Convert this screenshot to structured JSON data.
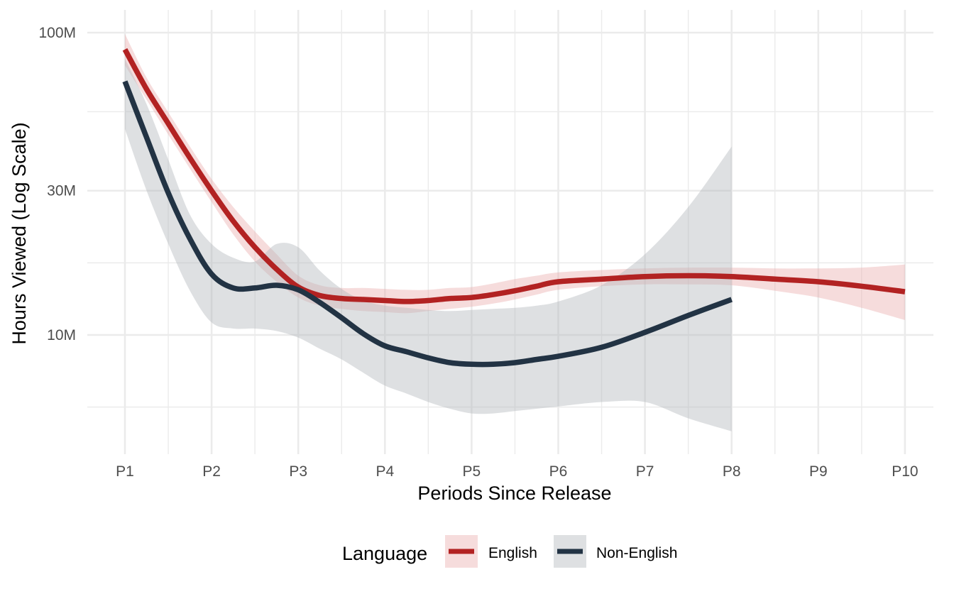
{
  "chart_data": {
    "type": "line",
    "title": "",
    "xlabel": "Periods Since Release",
    "ylabel": "Hours Viewed (Log Scale)",
    "y_scale": "log10",
    "ylim": [
      4400000,
      104000000
    ],
    "y_ticks": [
      {
        "value": 100000000,
        "label": "100M"
      },
      {
        "value": 30000000,
        "label": "30M"
      },
      {
        "value": 10000000,
        "label": "10M"
      }
    ],
    "y_minor_ticks": [
      54772256,
      17320508,
      5773503
    ],
    "categories": [
      "P1",
      "P2",
      "P3",
      "P4",
      "P5",
      "P6",
      "P7",
      "P8",
      "P9",
      "P10"
    ],
    "grid": true,
    "legend": {
      "title": "Language",
      "position": "bottom",
      "entries": [
        "English",
        "Non-English"
      ]
    },
    "series": [
      {
        "name": "English",
        "color": "#B22222",
        "band_color": "#E9A8A8",
        "x": [
          1,
          1.25,
          1.5,
          1.75,
          2,
          2.25,
          2.5,
          2.75,
          3,
          3.25,
          3.5,
          3.75,
          4,
          4.25,
          4.5,
          4.75,
          5,
          5.25,
          5.5,
          5.75,
          6,
          6.5,
          7,
          7.5,
          8,
          8.5,
          9,
          9.5,
          10
        ],
        "values": [
          88000000,
          65000000,
          50000000,
          38500000,
          30000000,
          23800000,
          19500000,
          16500000,
          14400000,
          13500000,
          13200000,
          13100000,
          13000000,
          12900000,
          13000000,
          13200000,
          13300000,
          13600000,
          14000000,
          14500000,
          15000000,
          15300000,
          15600000,
          15700000,
          15600000,
          15300000,
          15000000,
          14500000,
          13900000
        ],
        "lower": [
          78000000,
          60000000,
          46000000,
          35500000,
          27500000,
          21500000,
          17500000,
          15000000,
          13300000,
          12500000,
          12200000,
          12000000,
          11900000,
          11800000,
          12000000,
          12200000,
          12400000,
          12700000,
          13100000,
          13600000,
          14100000,
          14500000,
          14700000,
          14700000,
          14600000,
          14000000,
          13300000,
          12300000,
          11200000
        ],
        "upper": [
          99000000,
          71000000,
          54500000,
          42000000,
          32800000,
          26500000,
          22000000,
          18500000,
          15700000,
          14600000,
          14300000,
          14300000,
          14200000,
          14100000,
          14100000,
          14300000,
          14400000,
          14800000,
          15300000,
          15700000,
          16100000,
          16400000,
          16600000,
          16700000,
          16700000,
          16600000,
          16600000,
          16700000,
          17100000
        ]
      },
      {
        "name": "Non-English",
        "color": "#223344",
        "band_color": "#B0B4B9",
        "x": [
          1,
          1.25,
          1.5,
          1.75,
          2,
          2.25,
          2.5,
          2.75,
          3,
          3.25,
          3.5,
          3.75,
          4,
          4.25,
          4.5,
          4.75,
          5,
          5.25,
          5.5,
          5.75,
          6,
          6.5,
          7,
          7.5,
          8
        ],
        "values": [
          69000000,
          45000000,
          29500000,
          20800000,
          15900000,
          14300000,
          14300000,
          14600000,
          14100000,
          12800000,
          11400000,
          10100000,
          9200000,
          8800000,
          8400000,
          8100000,
          8000000,
          8000000,
          8100000,
          8300000,
          8500000,
          9100000,
          10200000,
          11600000,
          13100000
        ],
        "lower": [
          48000000,
          30000000,
          20000000,
          14000000,
          11000000,
          10500000,
          10500000,
          10300000,
          9800000,
          9000000,
          8300000,
          7500000,
          6800000,
          6400000,
          6000000,
          5700000,
          5500000,
          5500000,
          5600000,
          5700000,
          5800000,
          6000000,
          6000000,
          5300000,
          4800000
        ],
        "upper": [
          82000000,
          58000000,
          38000000,
          25000000,
          20000000,
          18000000,
          17500000,
          20000000,
          19500000,
          16300000,
          14200000,
          13000000,
          12500000,
          12300000,
          12100000,
          12000000,
          12100000,
          12200000,
          12300000,
          12500000,
          12900000,
          14600000,
          18500000,
          26500000,
          42000000
        ]
      }
    ]
  }
}
